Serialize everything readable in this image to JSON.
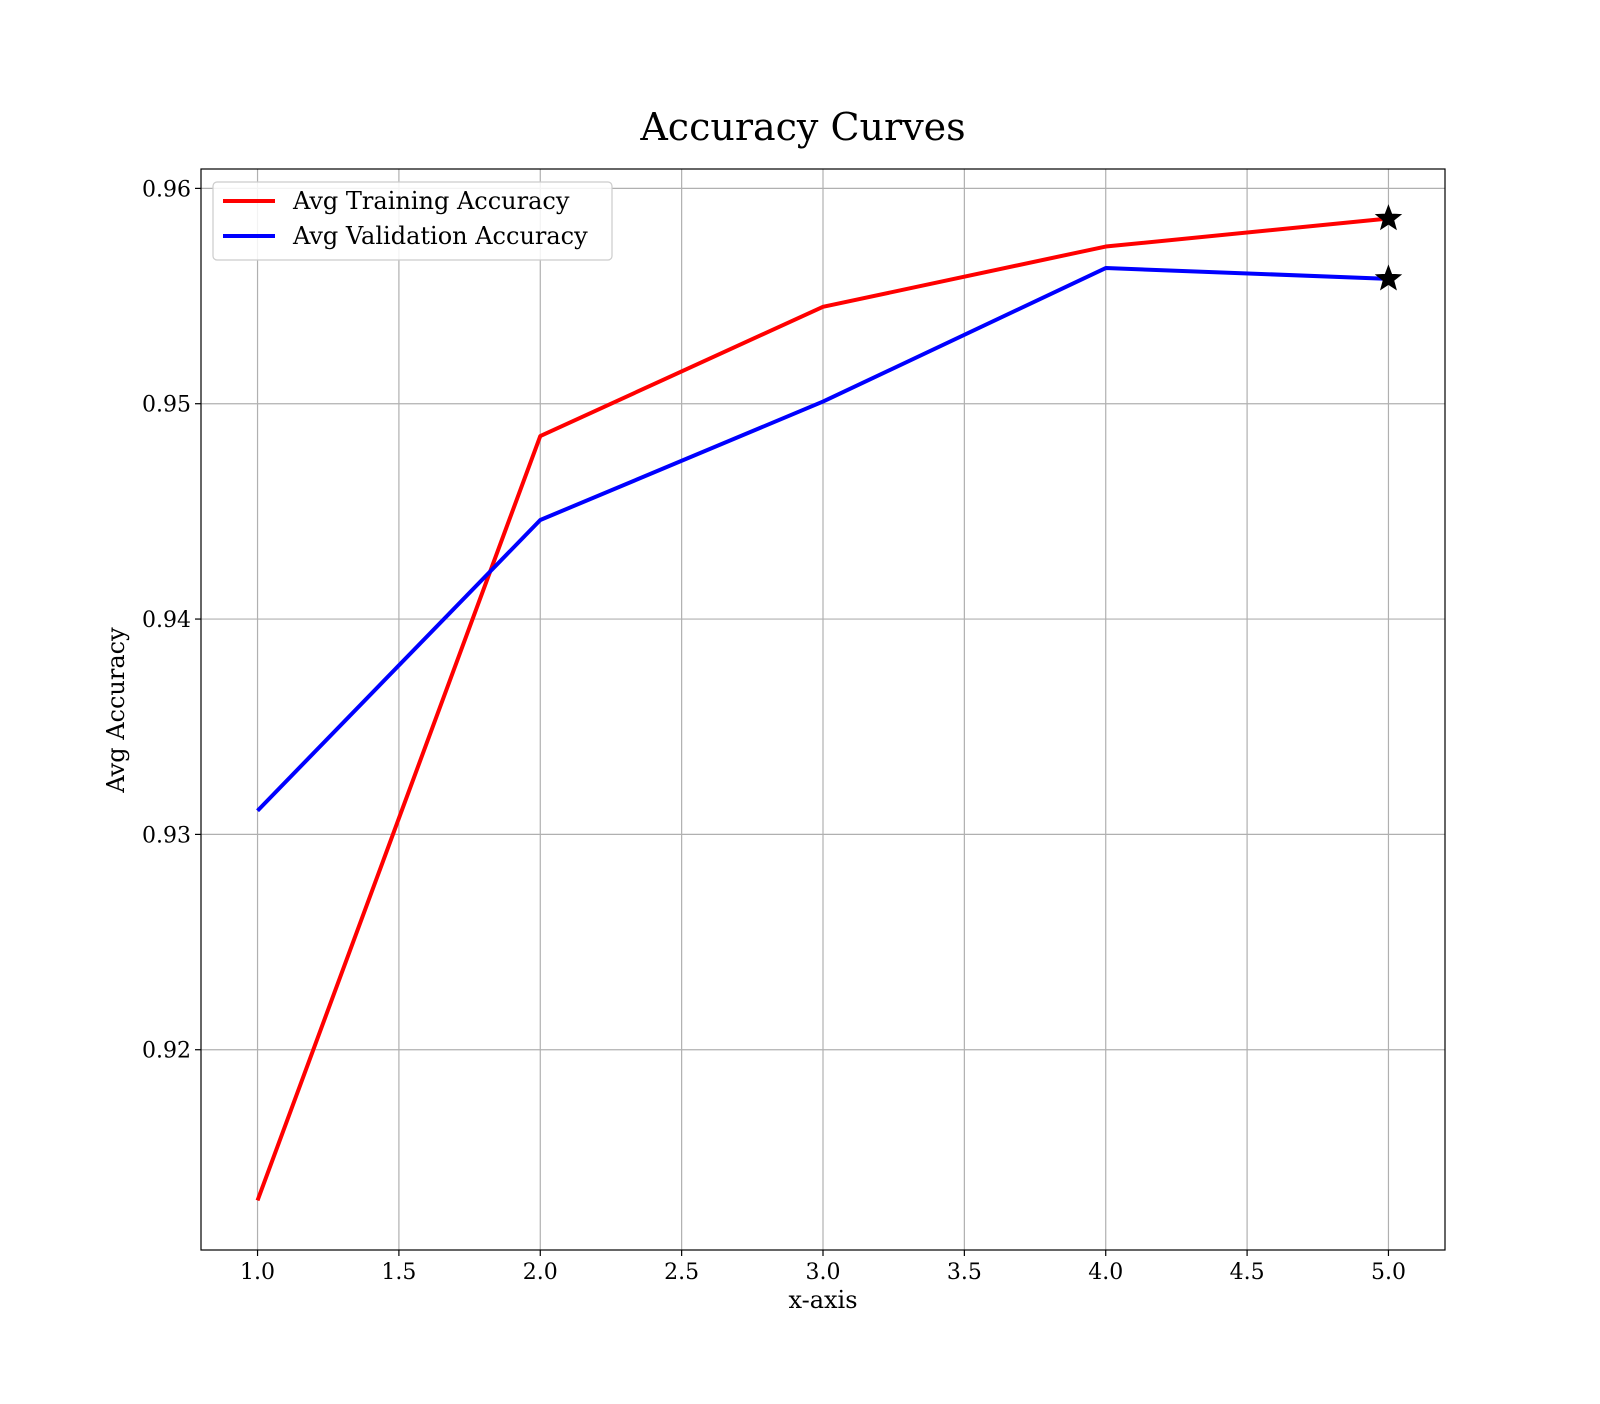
{
  "chart_data": {
    "type": "line",
    "title": "Accuracy Curves",
    "xlabel": "x-axis",
    "ylabel": "Avg Accuracy",
    "x": [
      1,
      2,
      3,
      4,
      5
    ],
    "xlim": [
      0.8,
      5.2
    ],
    "ylim": [
      0.9107,
      0.9609
    ],
    "xticks": [
      1.0,
      1.5,
      2.0,
      2.5,
      3.0,
      3.5,
      4.0,
      4.5,
      5.0
    ],
    "xtick_labels": [
      "1.0",
      "1.5",
      "2.0",
      "2.5",
      "3.0",
      "3.5",
      "4.0",
      "4.5",
      "5.0"
    ],
    "yticks": [
      0.92,
      0.93,
      0.94,
      0.95,
      0.96
    ],
    "ytick_labels": [
      "0.92",
      "0.93",
      "0.94",
      "0.95",
      "0.96"
    ],
    "grid": true,
    "legend_position": "upper-left",
    "series": [
      {
        "name": "Avg Training Accuracy",
        "color": "#ff0000",
        "values": [
          0.913,
          0.9485,
          0.9545,
          0.9573,
          0.9586
        ],
        "marker_at_last": "star"
      },
      {
        "name": "Avg Validation Accuracy",
        "color": "#0000ff",
        "values": [
          0.9311,
          0.9446,
          0.9501,
          0.9563,
          0.9558
        ],
        "marker_at_last": "star"
      }
    ]
  }
}
